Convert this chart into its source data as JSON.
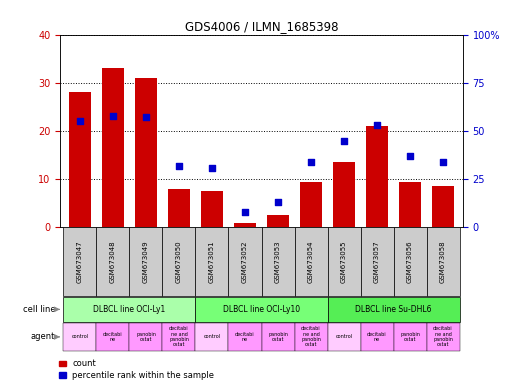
{
  "title": "GDS4006 / ILMN_1685398",
  "samples": [
    "GSM673047",
    "GSM673048",
    "GSM673049",
    "GSM673050",
    "GSM673051",
    "GSM673052",
    "GSM673053",
    "GSM673054",
    "GSM673055",
    "GSM673057",
    "GSM673056",
    "GSM673058"
  ],
  "counts": [
    28,
    33,
    31,
    8,
    7.5,
    1,
    2.5,
    9.5,
    13.5,
    21,
    9.5,
    8.5
  ],
  "percentile_ranks": [
    55,
    58,
    57,
    32,
    31,
    8,
    13,
    34,
    45,
    53,
    37,
    34
  ],
  "ylim_left": [
    0,
    40
  ],
  "ylim_right": [
    0,
    100
  ],
  "yticks_left": [
    0,
    10,
    20,
    30,
    40
  ],
  "yticks_right": [
    0,
    25,
    50,
    75,
    100
  ],
  "bar_color": "#cc0000",
  "dot_color": "#0000cc",
  "bar_width": 0.65,
  "cell_lines": [
    {
      "label": "DLBCL line OCI-Ly1",
      "start": 0,
      "end": 3,
      "color": "#aaffaa"
    },
    {
      "label": "DLBCL line OCI-Ly10",
      "start": 4,
      "end": 7,
      "color": "#77ff77"
    },
    {
      "label": "DLBCL line Su-DHL6",
      "start": 8,
      "end": 11,
      "color": "#55ee55"
    }
  ],
  "agents_labels": [
    "control",
    "decitabi\nne",
    "panobin\nostat",
    "decitabi\nne and\npanobin\nostat",
    "control",
    "decitabi\nne",
    "panobin\nostat",
    "decitabi\nne and\npanobin\nostat",
    "control",
    "decitabi\nne",
    "panobin\nostat",
    "decitabi\nne and\npanobin\nostat"
  ],
  "control_color": "#ffccff",
  "other_agent_color": "#ff99ff",
  "grid_color": "#000000",
  "bg_color": "#ffffff",
  "tick_bg_color": "#cccccc",
  "cell_line_label": "cell line",
  "agent_label": "agent",
  "legend_count_label": "count",
  "legend_pct_label": "percentile rank within the sample"
}
